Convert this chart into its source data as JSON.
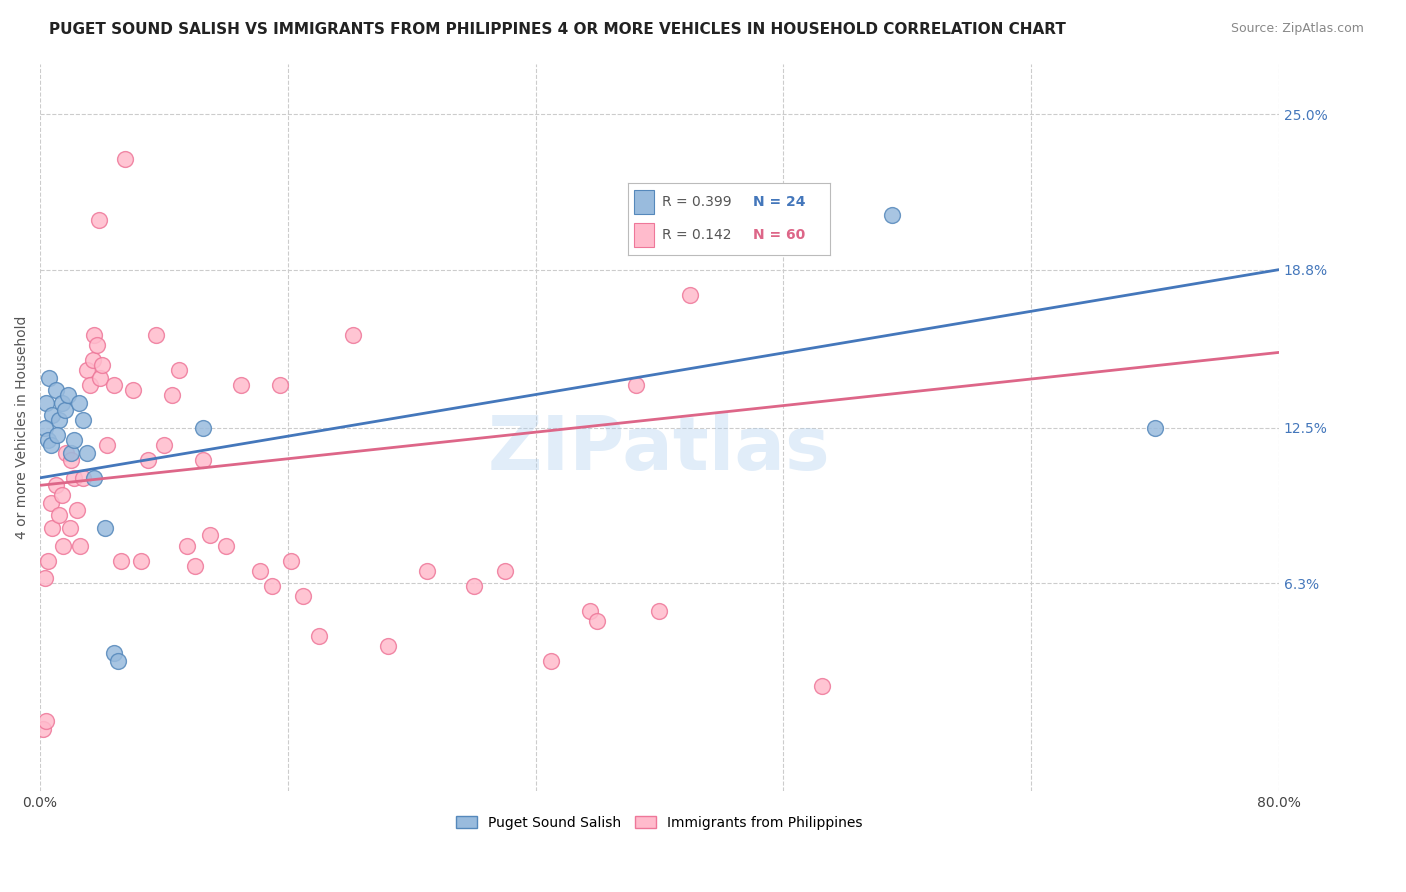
{
  "title": "PUGET SOUND SALISH VS IMMIGRANTS FROM PHILIPPINES 4 OR MORE VEHICLES IN HOUSEHOLD CORRELATION CHART",
  "source": "Source: ZipAtlas.com",
  "ylabel": "4 or more Vehicles in Household",
  "ytick_labels": [
    "25.0%",
    "18.8%",
    "12.5%",
    "6.3%"
  ],
  "ytick_values": [
    25.0,
    18.8,
    12.5,
    6.3
  ],
  "xlim": [
    0.0,
    80.0
  ],
  "ylim": [
    -2.0,
    27.0
  ],
  "legend_blue_r": "0.399",
  "legend_blue_n": "24",
  "legend_pink_r": "0.142",
  "legend_pink_n": "60",
  "legend_label_blue": "Puget Sound Salish",
  "legend_label_pink": "Immigrants from Philippines",
  "blue_color": "#99BBDD",
  "pink_color": "#FFBBCC",
  "blue_edge_color": "#5588BB",
  "pink_edge_color": "#EE7799",
  "blue_line_color": "#4477BB",
  "pink_line_color": "#DD6688",
  "watermark": "ZIPatlas",
  "blue_line": [
    [
      0.0,
      10.5
    ],
    [
      80.0,
      18.8
    ]
  ],
  "pink_line": [
    [
      0.0,
      10.2
    ],
    [
      80.0,
      15.5
    ]
  ],
  "blue_scatter": [
    [
      0.4,
      13.5
    ],
    [
      0.6,
      14.5
    ],
    [
      0.8,
      13.0
    ],
    [
      1.0,
      14.0
    ],
    [
      1.2,
      12.8
    ],
    [
      1.4,
      13.5
    ],
    [
      1.6,
      13.2
    ],
    [
      1.8,
      13.8
    ],
    [
      2.0,
      11.5
    ],
    [
      2.2,
      12.0
    ],
    [
      2.5,
      13.5
    ],
    [
      3.0,
      11.5
    ],
    [
      3.5,
      10.5
    ],
    [
      4.2,
      8.5
    ],
    [
      4.8,
      3.5
    ],
    [
      5.0,
      3.2
    ],
    [
      10.5,
      12.5
    ],
    [
      55.0,
      21.0
    ],
    [
      72.0,
      12.5
    ],
    [
      0.3,
      12.5
    ],
    [
      0.5,
      12.0
    ],
    [
      0.7,
      11.8
    ],
    [
      1.1,
      12.2
    ],
    [
      2.8,
      12.8
    ]
  ],
  "pink_scatter": [
    [
      0.2,
      0.5
    ],
    [
      0.4,
      0.8
    ],
    [
      0.3,
      6.5
    ],
    [
      0.5,
      7.2
    ],
    [
      0.7,
      9.5
    ],
    [
      0.8,
      8.5
    ],
    [
      1.0,
      10.2
    ],
    [
      1.2,
      9.0
    ],
    [
      1.4,
      9.8
    ],
    [
      1.5,
      7.8
    ],
    [
      1.7,
      11.5
    ],
    [
      1.9,
      8.5
    ],
    [
      2.0,
      11.2
    ],
    [
      2.2,
      10.5
    ],
    [
      2.4,
      9.2
    ],
    [
      2.6,
      7.8
    ],
    [
      2.8,
      10.5
    ],
    [
      3.0,
      14.8
    ],
    [
      3.2,
      14.2
    ],
    [
      3.4,
      15.2
    ],
    [
      3.5,
      16.2
    ],
    [
      3.7,
      15.8
    ],
    [
      3.9,
      14.5
    ],
    [
      4.0,
      15.0
    ],
    [
      4.3,
      11.8
    ],
    [
      4.8,
      14.2
    ],
    [
      5.2,
      7.2
    ],
    [
      5.5,
      23.2
    ],
    [
      6.0,
      14.0
    ],
    [
      6.5,
      7.2
    ],
    [
      7.0,
      11.2
    ],
    [
      7.5,
      16.2
    ],
    [
      8.0,
      11.8
    ],
    [
      8.5,
      13.8
    ],
    [
      9.0,
      14.8
    ],
    [
      9.5,
      7.8
    ],
    [
      10.0,
      7.0
    ],
    [
      10.5,
      11.2
    ],
    [
      11.0,
      8.2
    ],
    [
      12.0,
      7.8
    ],
    [
      13.0,
      14.2
    ],
    [
      14.2,
      6.8
    ],
    [
      15.0,
      6.2
    ],
    [
      15.5,
      14.2
    ],
    [
      16.2,
      7.2
    ],
    [
      17.0,
      5.8
    ],
    [
      18.0,
      4.2
    ],
    [
      20.2,
      16.2
    ],
    [
      22.5,
      3.8
    ],
    [
      25.0,
      6.8
    ],
    [
      28.0,
      6.2
    ],
    [
      30.0,
      6.8
    ],
    [
      33.0,
      3.2
    ],
    [
      35.5,
      5.2
    ],
    [
      36.0,
      4.8
    ],
    [
      40.0,
      5.2
    ],
    [
      42.0,
      17.8
    ],
    [
      50.5,
      2.2
    ],
    [
      3.8,
      20.8
    ],
    [
      38.5,
      14.2
    ]
  ]
}
